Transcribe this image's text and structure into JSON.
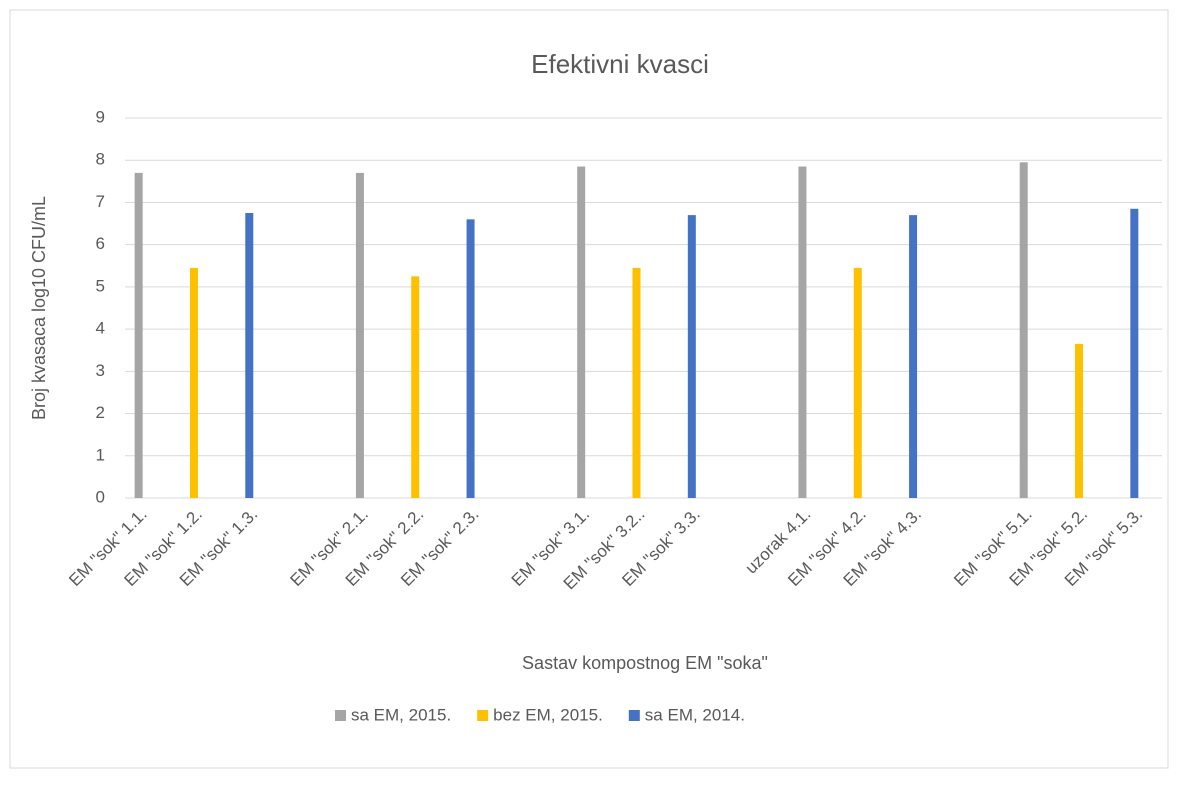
{
  "chart_data": {
    "type": "bar",
    "title": "Efektivni kvasci",
    "xlabel": "Sastav kompostnog EM \"soka\"",
    "ylabel": "Broj kvasaca log10 CFU/mL",
    "categories": [
      "EM \"sok\" 1.1.",
      "EM \"sok\" 1.2.",
      "EM \"sok\" 1.3.",
      null,
      "EM \"sok\" 2.1.",
      "EM \"sok\" 2.2.",
      "EM \"sok\" 2.3.",
      null,
      "EM \"sok\" 3.1.",
      "EM \"sok\" 3.2..",
      "EM \"sok\" 3.3.",
      null,
      "uzorak 4.1.",
      "EM \"sok\" 4.2.",
      "EM \"sok\" 4.3.",
      null,
      "EM \"sok\" 5.1.",
      "EM \"sok\" 5.2.",
      "EM \"sok\" 5.3."
    ],
    "series": [
      {
        "name": "sa EM, 2015.",
        "color": "#a5a5a5",
        "values": [
          7.7,
          null,
          null,
          null,
          7.7,
          null,
          null,
          null,
          7.85,
          null,
          null,
          null,
          7.85,
          null,
          null,
          null,
          7.95,
          null,
          null
        ]
      },
      {
        "name": "bez EM, 2015.",
        "color": "#ffc000",
        "values": [
          null,
          5.45,
          null,
          null,
          null,
          5.25,
          null,
          null,
          null,
          5.45,
          null,
          null,
          null,
          5.45,
          null,
          null,
          null,
          3.65,
          null
        ]
      },
      {
        "name": "sa EM, 2014.",
        "color": "#4472c4",
        "values": [
          null,
          null,
          6.75,
          null,
          null,
          null,
          6.6,
          null,
          null,
          null,
          6.7,
          null,
          null,
          null,
          6.7,
          null,
          null,
          null,
          6.85
        ]
      }
    ],
    "ylim": [
      0,
      9
    ],
    "yticks": [
      0,
      1,
      2,
      3,
      4,
      5,
      6,
      7,
      8,
      9
    ],
    "grid": true,
    "legend": "bottom"
  }
}
